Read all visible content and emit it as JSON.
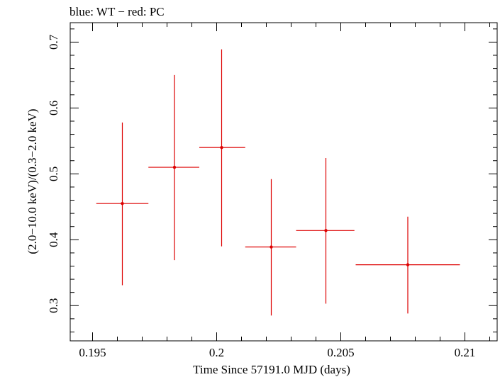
{
  "chart_data": {
    "type": "scatter",
    "title": "blue: WT − red: PC",
    "xlabel": "Time Since 57191.0 MJD (days)",
    "ylabel": "(2.0−10.0 keV)/(0.3−2.0 keV)",
    "xlim": [
      0.1941,
      0.2113
    ],
    "ylim": [
      0.2465,
      0.7295
    ],
    "x_ticks": [
      {
        "value": 0.195,
        "label": "0.195"
      },
      {
        "value": 0.2,
        "label": "0.2"
      },
      {
        "value": 0.205,
        "label": "0.205"
      },
      {
        "value": 0.21,
        "label": "0.21"
      }
    ],
    "y_ticks": [
      {
        "value": 0.3,
        "label": "0.3"
      },
      {
        "value": 0.4,
        "label": "0.4"
      },
      {
        "value": 0.5,
        "label": "0.5"
      },
      {
        "value": 0.6,
        "label": "0.6"
      },
      {
        "value": 0.7,
        "label": "0.7"
      }
    ],
    "series": [
      {
        "name": "PC",
        "color": "#dd0000",
        "points": [
          {
            "x": 0.1962,
            "y": 0.455,
            "xerr_lo": 0.00105,
            "xerr_hi": 0.00105,
            "yerr_lo": 0.124,
            "yerr_hi": 0.123
          },
          {
            "x": 0.1983,
            "y": 0.51,
            "xerr_lo": 0.00105,
            "xerr_hi": 0.001,
            "yerr_lo": 0.141,
            "yerr_hi": 0.14
          },
          {
            "x": 0.2002,
            "y": 0.54,
            "xerr_lo": 0.0009,
            "xerr_hi": 0.00095,
            "yerr_lo": 0.15,
            "yerr_hi": 0.149
          },
          {
            "x": 0.2022,
            "y": 0.389,
            "xerr_lo": 0.00105,
            "xerr_hi": 0.001,
            "yerr_lo": 0.104,
            "yerr_hi": 0.103
          },
          {
            "x": 0.2044,
            "y": 0.414,
            "xerr_lo": 0.0012,
            "xerr_hi": 0.00115,
            "yerr_lo": 0.111,
            "yerr_hi": 0.11
          },
          {
            "x": 0.2077,
            "y": 0.362,
            "xerr_lo": 0.0021,
            "xerr_hi": 0.0021,
            "yerr_lo": 0.074,
            "yerr_hi": 0.073
          }
        ]
      }
    ]
  }
}
